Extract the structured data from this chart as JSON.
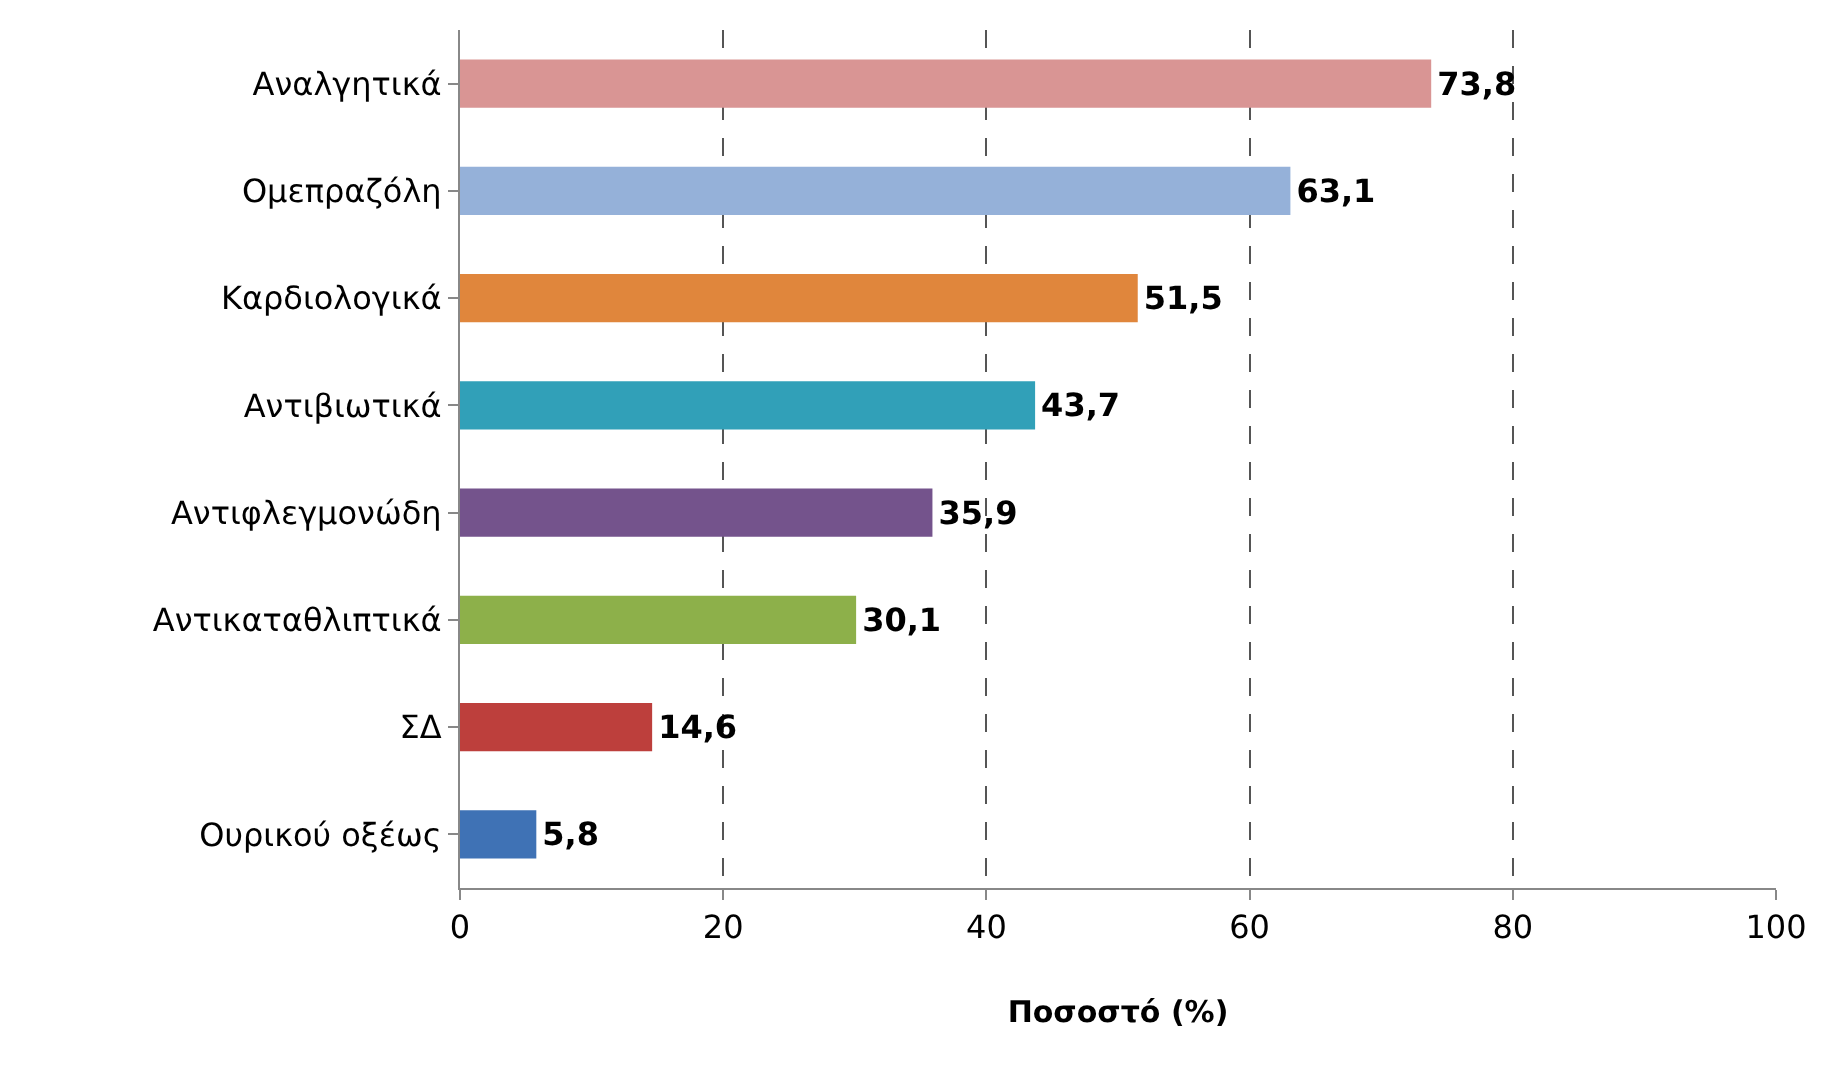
{
  "chart_data": {
    "type": "bar",
    "orientation": "horizontal",
    "xlabel": "Ποσοστό (%)",
    "categories": [
      "Αναλγητικά",
      "Ομεπραζόλη",
      "Καρδιολογικά",
      "Αντιβιωτικά",
      "Αντιφλεγμονώδη",
      "Αντικαταθλιπτικά",
      "ΣΔ",
      "Ουρικού οξέως"
    ],
    "values": [
      73.8,
      63.1,
      51.5,
      43.7,
      35.9,
      30.1,
      14.6,
      5.8
    ],
    "value_labels": [
      "73,8",
      "63,1",
      "51,5",
      "43,7",
      "35,9",
      "30,1",
      "14,6",
      "5,8"
    ],
    "colors": [
      "#d99594",
      "#95b1d9",
      "#e0863c",
      "#31a0b8",
      "#74538c",
      "#8db04a",
      "#bd3f3c",
      "#3f72b5"
    ],
    "xlim": [
      0,
      100
    ],
    "xticks": [
      0,
      20,
      40,
      60,
      80,
      100
    ],
    "grid": "x"
  }
}
